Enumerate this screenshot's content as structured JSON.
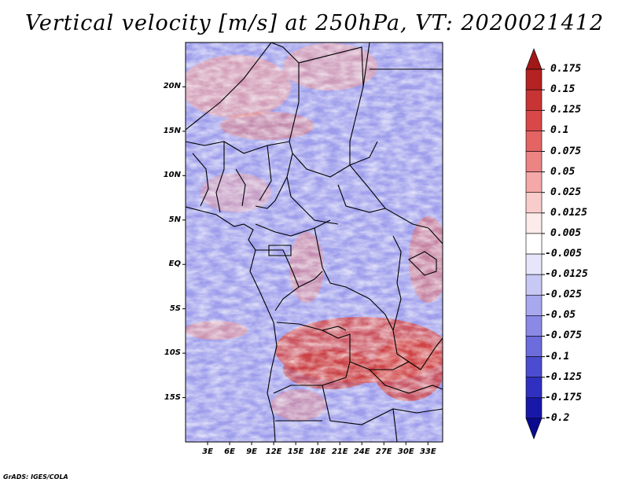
{
  "title": "Vertical velocity [m/s] at 250hPa, VT: 2020021412",
  "credit": "GrADS: IGES/COLA",
  "map": {
    "region": "Central and West-Central Africa",
    "lat_range": [
      -20,
      25
    ],
    "lon_range": [
      0,
      35
    ],
    "lat_labels": [
      "20N",
      "15N",
      "10N",
      "5N",
      "EQ",
      "5S",
      "10S",
      "15S"
    ],
    "lat_values": [
      20,
      15,
      10,
      5,
      0,
      -5,
      -10,
      -15
    ],
    "lon_labels": [
      "3E",
      "6E",
      "9E",
      "12E",
      "15E",
      "18E",
      "21E",
      "24E",
      "27E",
      "30E",
      "33E"
    ],
    "lon_values": [
      3,
      6,
      9,
      12,
      15,
      18,
      21,
      24,
      27,
      30,
      33
    ]
  },
  "colorbar": {
    "labels": [
      "0.175",
      "0.15",
      "0.125",
      "0.1",
      "0.075",
      "0.05",
      "0.025",
      "0.0125",
      "0.005",
      "-0.005",
      "-0.0125",
      "-0.025",
      "-0.05",
      "-0.075",
      "-0.1",
      "-0.125",
      "-0.175",
      "-0.2"
    ],
    "colors": [
      "#a01818",
      "#b52222",
      "#c83434",
      "#d84848",
      "#e46464",
      "#ec8484",
      "#f4a8a8",
      "#f9cccc",
      "#fdeaea",
      "#ffffff",
      "#e6e6fb",
      "#c8c8f4",
      "#a8a8ee",
      "#8a8ae6",
      "#6c6cdc",
      "#4c4cd0",
      "#3030c0",
      "#1818a8",
      "#0a0a90"
    ]
  },
  "colors": {
    "background_blue": "#8c8ce8",
    "warm_region": "#d85050",
    "border": "#000000"
  }
}
